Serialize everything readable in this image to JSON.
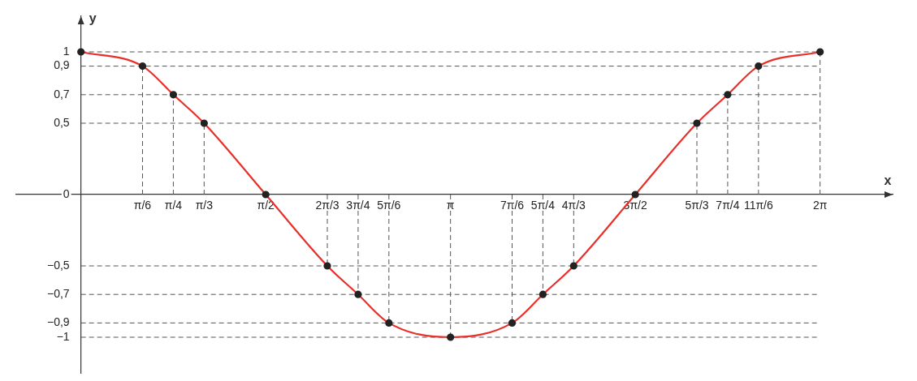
{
  "chart_data": {
    "type": "line",
    "xlabel": "x",
    "ylabel": "y",
    "x": [
      0,
      0.5236,
      0.7854,
      1.0472,
      1.5708,
      2.0944,
      2.3562,
      2.618,
      3.1416,
      3.6652,
      3.927,
      4.1888,
      4.7124,
      5.236,
      5.4978,
      5.7596,
      6.2832
    ],
    "series": [
      {
        "color": "#e8302a",
        "values": [
          1,
          0.9,
          0.7,
          0.5,
          0,
          -0.5,
          -0.7,
          -0.9,
          -1,
          -0.9,
          -0.7,
          -0.5,
          0,
          0.5,
          0.7,
          0.9,
          1
        ]
      }
    ],
    "marker": "circle",
    "grid": false,
    "legend": false,
    "xlim": [
      -0.55,
      6.9
    ],
    "ylim": [
      -1.25,
      1.25
    ],
    "xticks": [
      {
        "value": 0.5236,
        "label": "π/6"
      },
      {
        "value": 0.7854,
        "label": "π/4"
      },
      {
        "value": 1.0472,
        "label": "π/3"
      },
      {
        "value": 1.5708,
        "label": "π/2"
      },
      {
        "value": 2.0944,
        "label": "2π/3"
      },
      {
        "value": 2.3562,
        "label": "3π/4"
      },
      {
        "value": 2.618,
        "label": "5π/6"
      },
      {
        "value": 3.1416,
        "label": "π"
      },
      {
        "value": 3.6652,
        "label": "7π/6"
      },
      {
        "value": 3.927,
        "label": "5π/4"
      },
      {
        "value": 4.1888,
        "label": "4π/3"
      },
      {
        "value": 4.7124,
        "label": "3π/2"
      },
      {
        "value": 5.236,
        "label": "5π/3"
      },
      {
        "value": 5.4978,
        "label": "7π/4"
      },
      {
        "value": 5.7596,
        "label": "11π/6"
      },
      {
        "value": 6.2832,
        "label": "2π"
      }
    ],
    "yticks": [
      {
        "value": -1,
        "label": "−1"
      },
      {
        "value": -0.9,
        "label": "−0,9"
      },
      {
        "value": -0.7,
        "label": "−0,7"
      },
      {
        "value": -0.5,
        "label": "−0,5"
      },
      {
        "value": 0,
        "label": "0"
      },
      {
        "value": 0.5,
        "label": "0,5"
      },
      {
        "value": 0.7,
        "label": "0,7"
      },
      {
        "value": 0.9,
        "label": "0,9"
      },
      {
        "value": 1,
        "label": "1"
      }
    ],
    "ref_lines": [
      {
        "axis": "y",
        "value": 1,
        "line_style": "dashed",
        "color": "#555555"
      },
      {
        "axis": "y",
        "value": 0.9,
        "line_style": "dashed",
        "color": "#555555"
      },
      {
        "axis": "y",
        "value": 0.7,
        "line_style": "dashed",
        "color": "#555555"
      },
      {
        "axis": "y",
        "value": 0.5,
        "line_style": "dashed",
        "color": "#555555"
      },
      {
        "axis": "y",
        "value": -0.5,
        "line_style": "dashed",
        "color": "#555555"
      },
      {
        "axis": "y",
        "value": -0.7,
        "line_style": "dashed",
        "color": "#555555"
      },
      {
        "axis": "y",
        "value": -0.9,
        "line_style": "dashed",
        "color": "#555555"
      },
      {
        "axis": "y",
        "value": -1,
        "line_style": "dashed",
        "color": "#555555"
      },
      {
        "axis": "x",
        "value": 0.5236,
        "line_style": "dashed",
        "color": "#555555"
      },
      {
        "axis": "x",
        "value": 0.7854,
        "line_style": "dashed",
        "color": "#555555"
      },
      {
        "axis": "x",
        "value": 1.0472,
        "line_style": "dashed",
        "color": "#555555"
      },
      {
        "axis": "x",
        "value": 2.0944,
        "line_style": "dashed",
        "color": "#555555"
      },
      {
        "axis": "x",
        "value": 2.3562,
        "line_style": "dashed",
        "color": "#555555"
      },
      {
        "axis": "x",
        "value": 2.618,
        "line_style": "dashed",
        "color": "#555555"
      },
      {
        "axis": "x",
        "value": 3.1416,
        "line_style": "dashed",
        "color": "#555555"
      },
      {
        "axis": "x",
        "value": 3.6652,
        "line_style": "dashed",
        "color": "#555555"
      },
      {
        "axis": "x",
        "value": 3.927,
        "line_style": "dashed",
        "color": "#555555"
      },
      {
        "axis": "x",
        "value": 4.1888,
        "line_style": "dashed",
        "color": "#555555"
      },
      {
        "axis": "x",
        "value": 5.236,
        "line_style": "dashed",
        "color": "#555555"
      },
      {
        "axis": "x",
        "value": 5.4978,
        "line_style": "dashed",
        "color": "#555555"
      },
      {
        "axis": "x",
        "value": 5.7596,
        "line_style": "dashed",
        "color": "#555555"
      },
      {
        "axis": "x",
        "value": 6.2832,
        "line_style": "dashed",
        "color": "#555555"
      }
    ]
  }
}
